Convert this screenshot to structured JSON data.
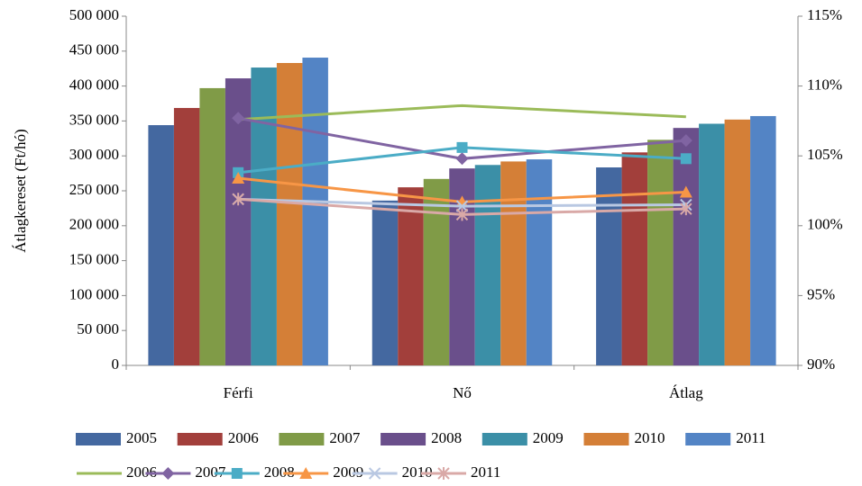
{
  "chart_data": {
    "type": "bar",
    "y_label": "Átlagkereset (Ft/hó)",
    "categories": [
      "Férfi",
      "Nő",
      "Átlag"
    ],
    "ylim": [
      0,
      500000
    ],
    "yticks": [
      0,
      {
        "value": 50000,
        "label": "50 000"
      },
      {
        "value": 100000,
        "label": "100 000"
      },
      {
        "value": 150000,
        "label": "150 000"
      },
      {
        "value": 200000,
        "label": "200 000"
      },
      {
        "value": 250000,
        "label": "250 000"
      },
      {
        "value": 300000,
        "label": "300 000"
      },
      {
        "value": 350000,
        "label": "350 000"
      },
      {
        "value": 400000,
        "label": "400 000"
      },
      {
        "value": 450000,
        "label": "450 000"
      },
      {
        "value": 500000,
        "label": "500 000"
      }
    ],
    "y2lim": [
      90,
      115
    ],
    "y2ticks": [
      {
        "value": 90,
        "label": "90%"
      },
      {
        "value": 95,
        "label": "95%"
      },
      {
        "value": 100,
        "label": "100%"
      },
      {
        "value": 105,
        "label": "105%"
      },
      {
        "value": 110,
        "label": "110%"
      },
      {
        "value": 115,
        "label": "115%"
      }
    ],
    "series": [
      {
        "name": "2005",
        "type": "bar",
        "color": "#4468a0",
        "values": [
          344000,
          236000,
          283500
        ]
      },
      {
        "name": "2006",
        "type": "bar",
        "color": "#a23f3b",
        "values": [
          368600,
          255000,
          305000
        ]
      },
      {
        "name": "2007",
        "type": "bar",
        "color": "#809b47",
        "values": [
          397000,
          267000,
          323000
        ]
      },
      {
        "name": "2008",
        "type": "bar",
        "color": "#6a4f8b",
        "values": [
          411000,
          282000,
          340000
        ]
      },
      {
        "name": "2009",
        "type": "bar",
        "color": "#3b8fa7",
        "values": [
          426500,
          287000,
          346000
        ]
      },
      {
        "name": "2010",
        "type": "bar",
        "color": "#d47f37",
        "values": [
          433000,
          292000,
          352000
        ]
      },
      {
        "name": "2011",
        "type": "bar",
        "color": "#5384c5",
        "values": [
          440700,
          295000,
          357000
        ]
      },
      {
        "name": "2006",
        "type": "line",
        "axis": "y2",
        "marker": "none",
        "color": "#9bbb59",
        "values": [
          107.6,
          108.6,
          107.8
        ]
      },
      {
        "name": "2007",
        "type": "line",
        "axis": "y2",
        "marker": "diamond",
        "color": "#8064a2",
        "values": [
          107.7,
          104.8,
          106.1
        ]
      },
      {
        "name": "2008",
        "type": "line",
        "axis": "y2",
        "marker": "square",
        "color": "#4bacc6",
        "values": [
          103.8,
          105.6,
          104.8
        ]
      },
      {
        "name": "2009",
        "type": "line",
        "axis": "y2",
        "marker": "triangle",
        "color": "#f79646",
        "values": [
          103.4,
          101.7,
          102.4
        ]
      },
      {
        "name": "2010",
        "type": "line",
        "axis": "y2",
        "marker": "x",
        "color": "#b9c8e2",
        "values": [
          101.9,
          101.4,
          101.5
        ]
      },
      {
        "name": "2011",
        "type": "line",
        "axis": "y2",
        "marker": "star",
        "color": "#d9a9a7",
        "values": [
          101.9,
          100.8,
          101.2
        ]
      }
    ]
  }
}
